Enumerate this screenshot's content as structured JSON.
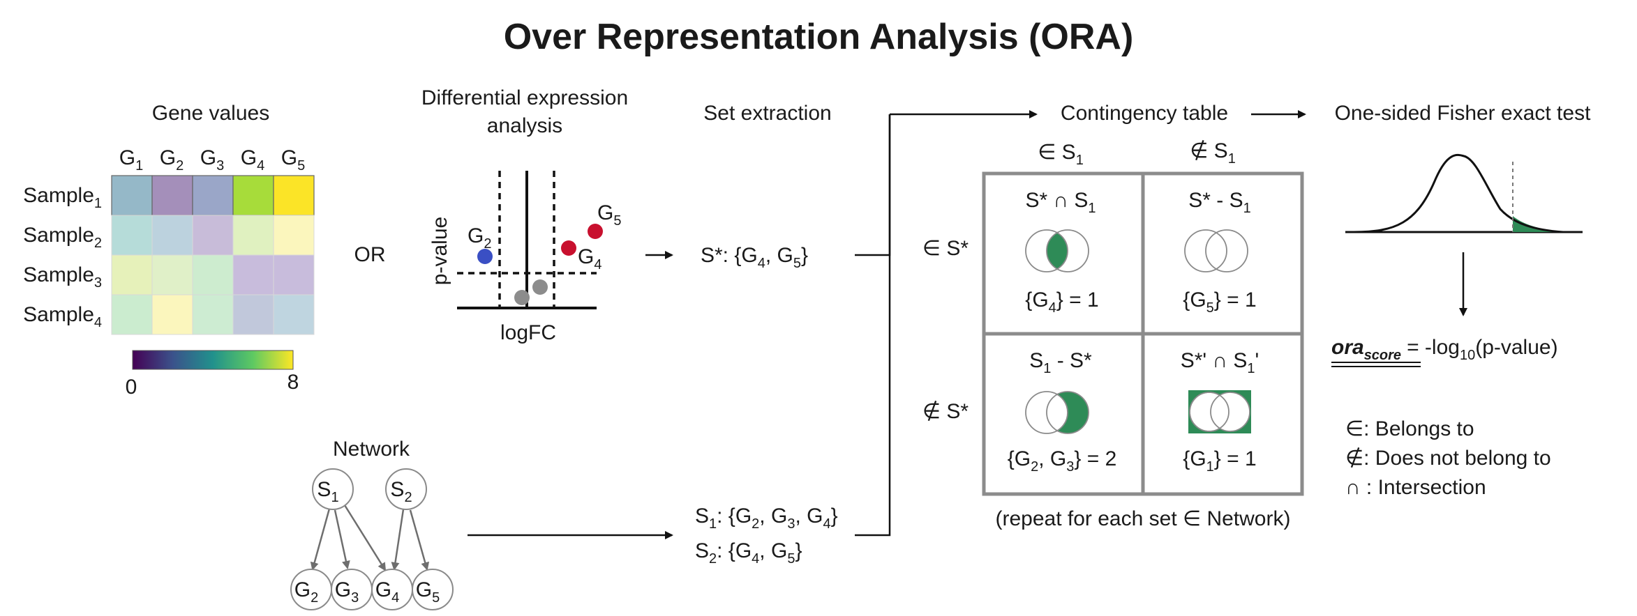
{
  "title": "Over Representation Analysis (ORA)",
  "colors": {
    "accent_green": "#2e8b57",
    "red_dot": "#c8102e",
    "blue_dot": "#3a4fc4",
    "grey_dot": "#8c8c8c",
    "box_border": "#8c8c8c"
  },
  "gene_values": {
    "heading": "Gene values",
    "columns": [
      "G",
      "G",
      "G",
      "G",
      "G"
    ],
    "column_subs": [
      "1",
      "2",
      "3",
      "4",
      "5"
    ],
    "rows": [
      "Sample",
      "Sample",
      "Sample",
      "Sample"
    ],
    "row_subs": [
      "1",
      "2",
      "3",
      "4"
    ],
    "cell_colors": [
      [
        "#95b8c8",
        "#a48fba",
        "#9aa6c8",
        "#a7dc3a",
        "#fbe427"
      ],
      [
        "#b6dcd9",
        "#bcd2de",
        "#c8bcd9",
        "#e0f1c0",
        "#fbf6bd"
      ],
      [
        "#e6f1ba",
        "#e0f0c8",
        "#cdeccf",
        "#c8bcdc",
        "#c8bcdc"
      ],
      [
        "#cbeccf",
        "#fbf6bd",
        "#cdecd2",
        "#c1c8db",
        "#bfd5e0"
      ]
    ],
    "colorbar_min": "0",
    "colorbar_max": "8",
    "colorbar_stops": [
      "#440154",
      "#3b528b",
      "#21918c",
      "#5ec962",
      "#fde725"
    ]
  },
  "or_label": "OR",
  "volcano": {
    "heading_line1": "Differential expression",
    "heading_line2": "analysis",
    "ylabel": "p-value",
    "xlabel": "logFC",
    "g2_label": "G",
    "g2_sub": "2",
    "g5_label": "G",
    "g5_sub": "5",
    "g4_label": "G",
    "g4_sub": "4"
  },
  "set_extraction": {
    "heading": "Set extraction",
    "s_star_prefix": "S*: {G",
    "s_star_sub1": "4",
    "s_star_mid": ", G",
    "s_star_sub2": "5",
    "s_star_suffix": "}",
    "s1_name": "S",
    "s1_name_sub": "1",
    "s1_text": ": {G",
    "s1_subs": [
      "2",
      "3",
      "4"
    ],
    "s2_name": "S",
    "s2_name_sub": "2",
    "s2_text": ": {G",
    "s2_subs": [
      "4",
      "5"
    ],
    "sep": ", G",
    "close": "}"
  },
  "network": {
    "heading": "Network",
    "parents": [
      {
        "label": "S",
        "sub": "1"
      },
      {
        "label": "S",
        "sub": "2"
      }
    ],
    "children": [
      {
        "label": "G",
        "sub": "2"
      },
      {
        "label": "G",
        "sub": "3"
      },
      {
        "label": "G",
        "sub": "4"
      },
      {
        "label": "G",
        "sub": "5"
      }
    ]
  },
  "contingency": {
    "heading": "Contingency table",
    "col1_symbol": "∈",
    "col1_label": "S",
    "col1_sub": "1",
    "col2_symbol": "∉",
    "col2_label": "S",
    "col2_sub": "1",
    "row1_label": "∈ S*",
    "row2_label": "∉ S*",
    "cells": [
      {
        "head": "S* ∩ S",
        "head_sub": "1",
        "value_prefix": "{G",
        "value_subs": [
          "4"
        ],
        "value_suffix": "} = 1"
      },
      {
        "head": "S* - S",
        "head_sub": "1",
        "value_prefix": "{G",
        "value_subs": [
          "5"
        ],
        "value_suffix": "} = 1"
      },
      {
        "head": "S",
        "head_sub": "1",
        "head_tail": " - S*",
        "value_prefix": "{G",
        "value_subs": [
          "2",
          "3"
        ],
        "value_suffix": "} = 2"
      },
      {
        "head": "S*' ∩ S",
        "head_sub": "1",
        "head_tail": "'",
        "value_prefix": "{G",
        "value_subs": [
          "1"
        ],
        "value_suffix": "} = 1"
      }
    ],
    "footnote": "(repeat for each set ∈ Network)"
  },
  "fisher": {
    "heading": "One-sided Fisher exact test",
    "score_name": "ora",
    "score_sub": "score",
    "score_eq": "=  -log",
    "score_log_sub": "10",
    "score_tail": "(p-value)"
  },
  "legend": [
    {
      "symbol": "∈",
      "text": ": Belongs to"
    },
    {
      "symbol": "∉",
      "text": ": Does not belong to"
    },
    {
      "symbol": "∩",
      "text": " : Intersection"
    }
  ]
}
